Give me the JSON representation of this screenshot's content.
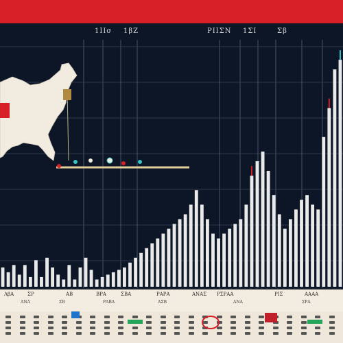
{
  "header": {
    "labels": [
      "1ΙΙσ",
      "1βΖ",
      "ΡΙΙΣΝ",
      "1ΣΙ",
      "Σβ"
    ]
  },
  "colors": {
    "top_bar": "#d71f26",
    "background": "#0d1627",
    "bars": "#eaeaea",
    "accent_red": "#d71f26",
    "accent_teal": "#35c3c3",
    "map_fill": "#f1ebe0",
    "footer": "#efe7d9"
  },
  "chart_data": {
    "type": "bar",
    "title": "",
    "xlabel": "",
    "ylabel": "",
    "ylim": [
      0,
      100
    ],
    "grid": true,
    "values": [
      8,
      6,
      9,
      5,
      9,
      4,
      11,
      4,
      12,
      8,
      5,
      3,
      9,
      3,
      8,
      12,
      7,
      3,
      4,
      5,
      6,
      7,
      8,
      10,
      12,
      14,
      16,
      18,
      20,
      22,
      24,
      26,
      28,
      30,
      34,
      40,
      34,
      28,
      22,
      20,
      22,
      24,
      26,
      28,
      34,
      46,
      52,
      56,
      48,
      38,
      30,
      24,
      28,
      32,
      36,
      38,
      34,
      32,
      62,
      74,
      90,
      94
    ],
    "annotations": [
      "map-inset-usa"
    ]
  },
  "footer": {
    "row1": [
      "ΛβΑ",
      "ΣΡ",
      "ΑΒ",
      "ΒΡΑ",
      "ΣΒΑ",
      "ΡΑΡΑ",
      "ΑΝΑΣ",
      "ΡΣΡΑΑ",
      "ΡΙΣ",
      "ΑΑΑΑ"
    ],
    "row2": [
      "ΑΝΑ",
      "ΣΒ",
      "ΡΑΒΑ",
      "ΑΣΒ",
      "ΑΝΑ",
      "ΣΡΑ"
    ]
  }
}
